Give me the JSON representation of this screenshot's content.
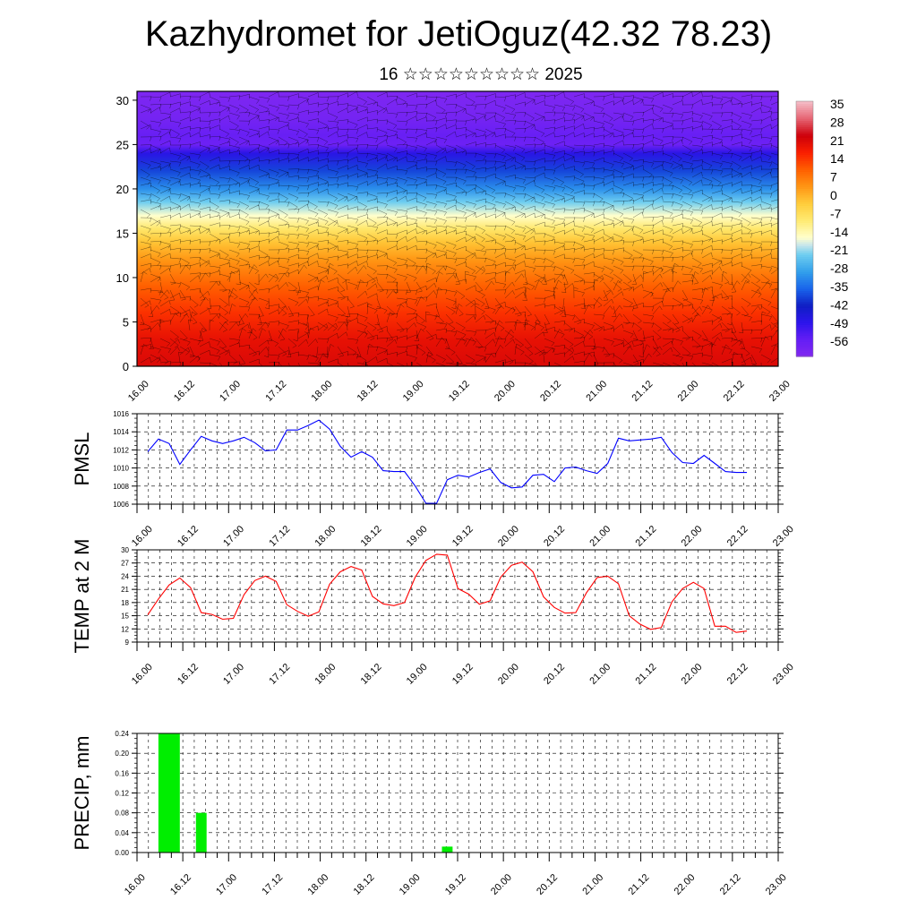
{
  "header": {
    "title": "Kazhydromet for JetiOguz(42.32 78.23)",
    "subtitle": "16 ☆☆☆☆☆☆☆☆☆ 2025"
  },
  "x_ticks": [
    "16.00",
    "16.12",
    "17.00",
    "17.12",
    "18.00",
    "18.12",
    "19.00",
    "19.12",
    "20.00",
    "20.12",
    "21.00",
    "21.12",
    "22.00",
    "22.12",
    "23.00"
  ],
  "chart_data": [
    {
      "type": "heatmap",
      "title": "",
      "xlabel": "",
      "ylabel": "",
      "yticks": [
        "0",
        "5",
        "10",
        "15",
        "20",
        "25",
        "30"
      ],
      "ylim": [
        0,
        31
      ],
      "colorbar": {
        "labels": [
          "35",
          "28",
          "21",
          "14",
          "7",
          "0",
          "-7",
          "-14",
          "-21",
          "-28",
          "-35",
          "-42",
          "-49",
          "-56"
        ],
        "range": [
          -63,
          42
        ]
      },
      "temperature_profile": {
        "levels": [
          0,
          3,
          6,
          9,
          12,
          14,
          15.5,
          17,
          18.5,
          20,
          22,
          24,
          25,
          26,
          28,
          31
        ],
        "values": [
          26,
          24,
          19,
          14,
          7,
          1,
          -6,
          -14,
          -21,
          -30,
          -38,
          -48,
          -58,
          -57,
          -60,
          -62
        ]
      },
      "grid": false,
      "legend": "right"
    },
    {
      "type": "line",
      "ylabel": "PMSL",
      "yticks": [
        "1006",
        "1008",
        "1010",
        "1012",
        "1014",
        "1016"
      ],
      "ylim": [
        1006,
        1016
      ],
      "x": [
        "16.00",
        "16.03",
        "16.06",
        "16.09",
        "16.12",
        "16.15",
        "16.18",
        "16.21",
        "17.00",
        "17.03",
        "17.06",
        "17.09",
        "17.12",
        "17.15",
        "17.18",
        "17.21",
        "18.00",
        "18.03",
        "18.06",
        "18.09",
        "18.12",
        "18.15",
        "18.18",
        "18.21",
        "19.00",
        "19.03",
        "19.06",
        "19.09",
        "19.12",
        "19.15",
        "19.18",
        "19.21",
        "20.00",
        "20.03",
        "20.06",
        "20.09",
        "20.12",
        "20.15",
        "20.18",
        "20.21",
        "21.00",
        "21.03",
        "21.06",
        "21.09",
        "21.12",
        "21.15",
        "21.18",
        "21.21",
        "22.00",
        "22.03",
        "22.06",
        "22.09",
        "22.12",
        "22.15",
        "22.18",
        "22.21",
        "23.00"
      ],
      "series": [
        {
          "values": [
            1011.8,
            1013.2,
            1012.7,
            1010.4,
            1012.0,
            1013.5,
            1013.0,
            1012.7,
            1013.0,
            1013.4,
            1012.8,
            1011.9,
            1012.0,
            1014.2,
            1014.2,
            1014.7,
            1015.3,
            1014.3,
            1012.4,
            1011.2,
            1011.8,
            1011.2,
            1009.7,
            1009.6,
            1009.6,
            1008.0,
            1006.1,
            1006.1,
            1008.7,
            1009.2,
            1009.0,
            1009.5,
            1009.9,
            1008.4,
            1007.8,
            1007.9,
            1009.2,
            1009.3,
            1008.5,
            1010.0,
            1010.1,
            1009.7,
            1009.4,
            1010.5,
            1013.3,
            1013.0,
            1013.1,
            1013.2,
            1013.4,
            1011.7,
            1010.6,
            1010.5,
            1011.4,
            1010.5,
            1009.6,
            1009.5,
            1009.5
          ],
          "color": "#0000ff"
        }
      ],
      "grid": true
    },
    {
      "type": "line",
      "ylabel": "TEMP at 2 M",
      "yticks": [
        "9",
        "12",
        "15",
        "18",
        "21",
        "24",
        "27",
        "30"
      ],
      "ylim": [
        9,
        30
      ],
      "x": [
        "16.00",
        "16.03",
        "16.06",
        "16.09",
        "16.12",
        "16.15",
        "16.18",
        "16.21",
        "17.00",
        "17.03",
        "17.06",
        "17.09",
        "17.12",
        "17.15",
        "17.18",
        "17.21",
        "18.00",
        "18.03",
        "18.06",
        "18.09",
        "18.12",
        "18.15",
        "18.18",
        "18.21",
        "19.00",
        "19.03",
        "19.06",
        "19.09",
        "19.12",
        "19.15",
        "19.18",
        "19.21",
        "20.00",
        "20.03",
        "20.06",
        "20.09",
        "20.12",
        "20.15",
        "20.18",
        "20.21",
        "21.00",
        "21.03",
        "21.06",
        "21.09",
        "21.12",
        "21.15",
        "21.18",
        "21.21",
        "22.00",
        "22.03",
        "22.06",
        "22.09",
        "22.12",
        "22.15",
        "22.18",
        "22.21",
        "23.00"
      ],
      "series": [
        {
          "values": [
            15.2,
            18.8,
            22.0,
            23.6,
            21.4,
            15.7,
            15.3,
            14.2,
            14.4,
            19.8,
            23.0,
            24.0,
            22.8,
            17.5,
            16.0,
            14.9,
            15.9,
            22.2,
            25.0,
            26.2,
            25.4,
            19.4,
            17.7,
            17.3,
            18.0,
            23.8,
            27.6,
            29.0,
            28.8,
            21.2,
            19.9,
            17.6,
            18.4,
            23.8,
            26.5,
            27.2,
            25.0,
            19.3,
            16.9,
            15.6,
            15.7,
            20.2,
            23.7,
            24.0,
            22.3,
            15.0,
            13.1,
            11.9,
            12.3,
            18.2,
            21.2,
            22.6,
            21.2,
            12.6,
            12.6,
            11.2,
            11.5
          ],
          "color": "#ff0000"
        }
      ],
      "grid": true
    },
    {
      "type": "bar",
      "ylabel": "PRECIP, mm",
      "yticks": [
        "0.00",
        "0.04",
        "0.08",
        "0.12",
        "0.16",
        "0.20",
        "0.24"
      ],
      "ylim": [
        0,
        0.24
      ],
      "bars": [
        {
          "x_hours": 6,
          "width_hours": 6,
          "value": 0.24
        },
        {
          "x_hours": 15,
          "width_hours": 3,
          "value": 0.08
        },
        {
          "x_hours": 84,
          "width_hours": 3,
          "value": 0.012
        }
      ],
      "color": "#00ee00",
      "grid": true
    }
  ]
}
